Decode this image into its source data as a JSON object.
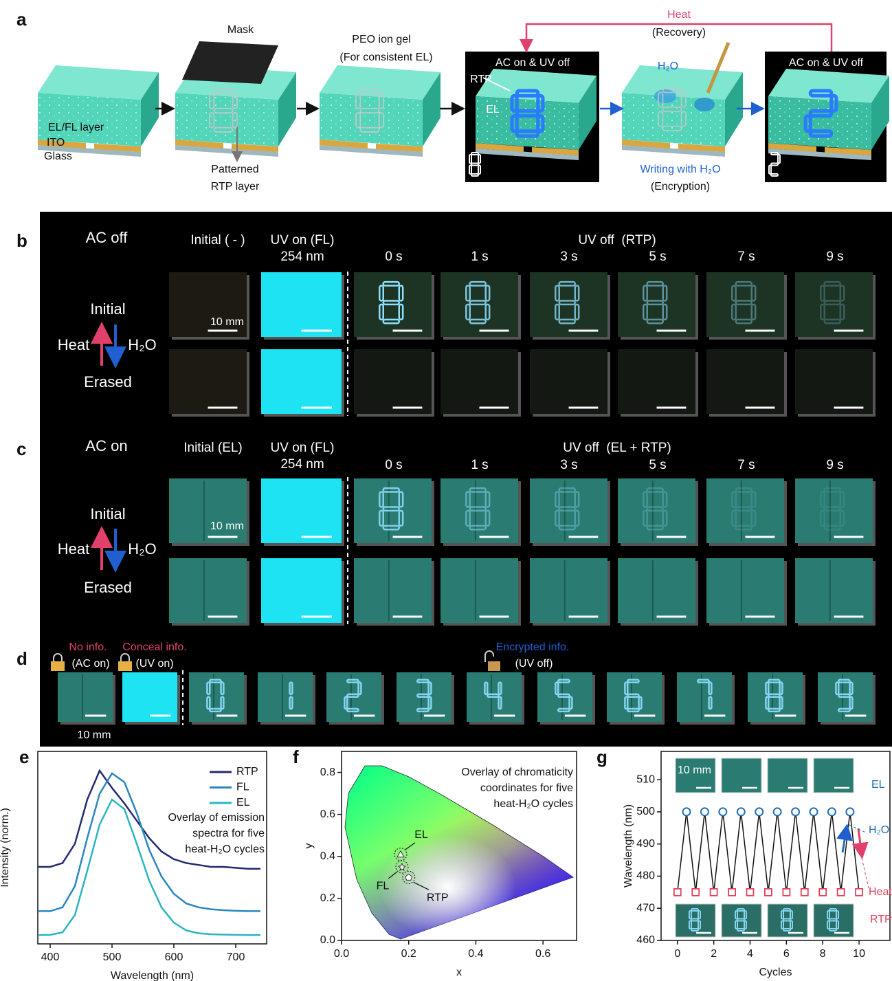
{
  "panel_a": {
    "label": "a",
    "mask": "Mask",
    "peo": [
      "PEO ion gel",
      "(For consistent EL)"
    ],
    "layers": [
      "EL/FL layer",
      "ITO",
      "Glass"
    ],
    "patterned": [
      "Patterned",
      "RTP layer"
    ],
    "heat": "Heat",
    "recovery": "(Recovery)",
    "state_1": "AC on & UV off",
    "rtp": "RTP",
    "el": "EL",
    "water": "H₂O",
    "writing": "Writing with H₂O",
    "encryption": "(Encryption)",
    "state_2": "AC on & UV off"
  },
  "panel_b": {
    "label": "b",
    "mode": "AC off",
    "columns": [
      "Initial ( - )",
      "UV on (FL)"
    ],
    "wavelength": "254 nm",
    "uv_off": "UV off  (RTP)",
    "times": [
      "0 s",
      "1 s",
      "3 s",
      "5 s",
      "7 s",
      "9 s"
    ],
    "initial": "Initial",
    "heat": "Heat",
    "water": "H₂O",
    "erased": "Erased",
    "scale": "10 mm"
  },
  "panel_c": {
    "label": "c",
    "mode": "AC on",
    "columns": [
      "Initial (EL)",
      "UV on (FL)"
    ],
    "wavelength": "254 nm",
    "uv_off": "UV off  (EL + RTP)",
    "times": [
      "0 s",
      "1 s",
      "3 s",
      "5 s",
      "7 s",
      "9 s"
    ],
    "initial": "Initial",
    "heat": "Heat",
    "water": "H₂O",
    "erased": "Erased",
    "scale": "10 mm"
  },
  "panel_d": {
    "label": "d",
    "no_info": "No info.",
    "ac_on": "(AC on)",
    "conceal": "Conceal info.",
    "uv_on": "(UV on)",
    "encrypted": "Encrypted info.",
    "uv_off": "(UV off)",
    "scale": "10 mm"
  },
  "chart_data": [
    {
      "type": "line",
      "label": "e",
      "x": [
        380,
        400,
        420,
        440,
        460,
        480,
        500,
        520,
        540,
        560,
        580,
        600,
        620,
        640,
        660,
        680,
        700,
        720,
        740
      ],
      "series": [
        {
          "name": "RTP",
          "color": "#232a6f",
          "values": [
            0.4,
            0.4,
            0.42,
            0.52,
            0.75,
            0.9,
            0.81,
            0.73,
            0.64,
            0.55,
            0.48,
            0.44,
            0.42,
            0.41,
            0.4,
            0.4,
            0.395,
            0.39,
            0.39
          ]
        },
        {
          "name": "FL",
          "color": "#2a86c0",
          "values": [
            0.17,
            0.17,
            0.19,
            0.3,
            0.55,
            0.78,
            0.886,
            0.84,
            0.68,
            0.49,
            0.35,
            0.26,
            0.21,
            0.19,
            0.18,
            0.175,
            0.172,
            0.17,
            0.17
          ]
        },
        {
          "name": "EL",
          "color": "#2ab5bf",
          "values": [
            0.046,
            0.047,
            0.06,
            0.15,
            0.38,
            0.62,
            0.75,
            0.7,
            0.52,
            0.33,
            0.19,
            0.11,
            0.07,
            0.055,
            0.05,
            0.048,
            0.047,
            0.046,
            0.046
          ]
        }
      ],
      "xlim": [
        380,
        750
      ],
      "xticks": [
        400,
        500,
        600,
        700
      ],
      "ylim": [
        0,
        1
      ],
      "xlabel": "Wavelength (nm)",
      "ylabel": "Intensity (norm.)",
      "annotation": [
        "Overlay of emission",
        "spectra for five",
        "heat-H₂O cycles"
      ],
      "legend": "upper right"
    },
    {
      "type": "scatter",
      "label": "f",
      "series": [
        {
          "name": "EL",
          "marker": "triangle",
          "x": [
            0.176
          ],
          "values": [
            0.41
          ]
        },
        {
          "name": "FL",
          "marker": "star",
          "x": [
            0.18
          ],
          "values": [
            0.35
          ]
        },
        {
          "name": "RTP",
          "marker": "pentagon",
          "x": [
            0.2
          ],
          "values": [
            0.3
          ]
        }
      ],
      "xlim": [
        0,
        0.7
      ],
      "xticks": [
        {
          "value": 0,
          "label": "0.0"
        },
        0.2,
        0.4,
        0.6
      ],
      "ylim": [
        0,
        0.9
      ],
      "yticks": [
        {
          "value": 0,
          "label": "0.0"
        },
        0.2,
        0.4,
        0.6,
        0.8
      ],
      "xlabel": "x",
      "ylabel": "y",
      "annotation": [
        "Overlay of chromaticity",
        "coordinates for five",
        "heat-H₂O cycles"
      ]
    },
    {
      "type": "line",
      "label": "g",
      "series": [
        {
          "name": "EL",
          "color": "#1f6fb5",
          "marker": "circle",
          "x": [
            0.5,
            1.5,
            2.5,
            3.5,
            4.5,
            5.5,
            6.5,
            7.5,
            8.5,
            9.5
          ],
          "values": [
            500,
            500,
            500,
            500,
            500,
            500,
            500,
            500,
            500,
            500
          ]
        },
        {
          "name": "RTP",
          "color": "#e0405a",
          "marker": "square",
          "x": [
            0,
            1,
            2,
            3,
            4,
            5,
            6,
            7,
            8,
            9,
            10
          ],
          "values": [
            475,
            475,
            475,
            475,
            475,
            475,
            475,
            475,
            475,
            475,
            475
          ]
        }
      ],
      "xlim": [
        -0.9,
        11.7
      ],
      "xticks": [
        0,
        2,
        4,
        6,
        8,
        10
      ],
      "ylim": [
        460,
        518.8
      ],
      "yticks": [
        460,
        470,
        480,
        490,
        500,
        510
      ],
      "xlabel": "Cycles",
      "ylabel": "Wavelength (nm)",
      "inset_scale": "10 mm",
      "water": "H₂O",
      "heat": "Heat"
    }
  ]
}
